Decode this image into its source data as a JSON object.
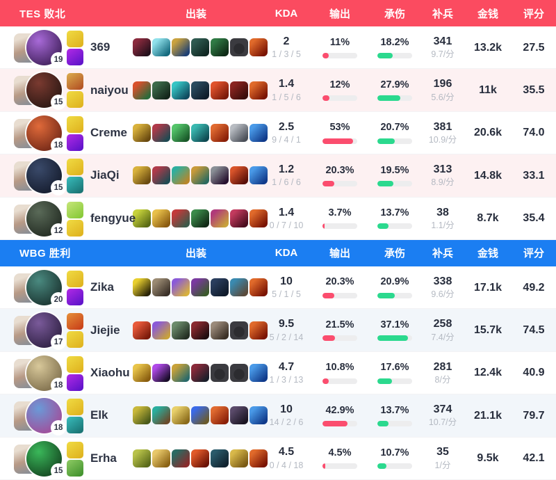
{
  "columns": {
    "items": "出装",
    "kda": "KDA",
    "damage": "输出",
    "taken": "承伤",
    "cs": "补兵",
    "gold": "金钱",
    "score": "评分"
  },
  "colors": {
    "red_bar": "#fb4d6e",
    "green_bar": "#2bd98e",
    "track": "#ededee"
  },
  "teams": [
    {
      "name": "TES 败北",
      "accent": "#fb4b60",
      "row_tint": "#fdf1f2",
      "players": [
        {
          "name": "369",
          "level": "19",
          "kda": "2",
          "kda_detail": "1 / 3 / 5",
          "damage": "11%",
          "damage_pct": 11,
          "taken": "18.2%",
          "taken_pct": 18.2,
          "cs": "341",
          "cs_per_min": "9.7/分",
          "gold": "13.2k",
          "score": "27.5",
          "avatar": [
            "#a86ad8",
            "#2a1040"
          ],
          "spells": [
            "#e8c832",
            "#8a1fd8"
          ],
          "items": [
            {
              "c": [
                "#8a2a3d",
                "#23101c"
              ]
            },
            {
              "c": [
                "#8fe0ea",
                "#156a7e"
              ]
            },
            {
              "c": [
                "#c9a23f",
                "#1d3f73"
              ]
            },
            {
              "c": [
                "#2f5a50",
                "#102722"
              ]
            },
            {
              "c": [
                "#2f7a44",
                "#0e2a16"
              ]
            },
            {
              "empty": true
            },
            {
              "c": [
                "#e06a2b",
                "#7a1403"
              ]
            }
          ]
        },
        {
          "name": "naiyou",
          "level": "15",
          "kda": "1.4",
          "kda_detail": "1 / 5 / 6",
          "damage": "12%",
          "damage_pct": 12,
          "taken": "27.9%",
          "taken_pct": 27.9,
          "cs": "196",
          "cs_per_min": "5.6/分",
          "gold": "11k",
          "score": "35.5",
          "avatar": [
            "#7a3a30",
            "#1a100d"
          ],
          "spells": [
            "#c8823a",
            "#e8c832"
          ],
          "items": [
            {
              "c": [
                "#d8502c",
                "#2a6a3a"
              ]
            },
            {
              "c": [
                "#3c6a4a",
                "#14251a"
              ]
            },
            {
              "c": [
                "#35c4c4",
                "#0f4a5e"
              ]
            },
            {
              "c": [
                "#2a4a5e",
                "#101c2a"
              ]
            },
            {
              "c": [
                "#e0522c",
                "#7a1a0a"
              ]
            },
            {
              "c": [
                "#8a2420",
                "#3a0d0a"
              ]
            },
            {
              "c": [
                "#e06a2b",
                "#7a1403"
              ]
            }
          ]
        },
        {
          "name": "Creme",
          "level": "18",
          "kda": "2.5",
          "kda_detail": "9 / 4 / 1",
          "damage": "53%",
          "damage_pct": 53,
          "taken": "20.7%",
          "taken_pct": 20.7,
          "cs": "381",
          "cs_per_min": "10.9/分",
          "gold": "20.6k",
          "score": "74.0",
          "avatar": [
            "#e06a3a",
            "#5a1a10"
          ],
          "spells": [
            "#e8c832",
            "#8a1fd8"
          ],
          "items": [
            {
              "c": [
                "#d8b13c",
                "#6a4a10"
              ]
            },
            {
              "c": [
                "#b03a4a",
                "#1f4a52"
              ]
            },
            {
              "c": [
                "#54c46a",
                "#1a5a2a"
              ]
            },
            {
              "c": [
                "#39b8b0",
                "#0f4a52"
              ]
            },
            {
              "c": [
                "#e06a30",
                "#8a2008"
              ]
            },
            {
              "c": [
                "#b8bcc2",
                "#4a4f58"
              ]
            },
            {
              "c": [
                "#4a9ae8",
                "#103a8a"
              ]
            }
          ]
        },
        {
          "name": "JiaQi",
          "level": "15",
          "kda": "1.2",
          "kda_detail": "1 / 6 / 6",
          "damage": "20.3%",
          "damage_pct": 20.3,
          "taken": "19.5%",
          "taken_pct": 19.5,
          "cs": "313",
          "cs_per_min": "8.9/分",
          "gold": "14.8k",
          "score": "33.1",
          "avatar": [
            "#3a4a6a",
            "#0d1220"
          ],
          "spells": [
            "#e8c832",
            "#2a9a9a"
          ],
          "items": [
            {
              "c": [
                "#d8b13c",
                "#6a4a10"
              ]
            },
            {
              "c": [
                "#b03a4a",
                "#1f4a52"
              ]
            },
            {
              "c": [
                "#2fae9e",
                "#b8862a"
              ]
            },
            {
              "c": [
                "#c89a3a",
                "#2a6a5e"
              ]
            },
            {
              "c": [
                "#8a8f96",
                "#26102e"
              ]
            },
            {
              "c": [
                "#d8542a",
                "#5a0f08"
              ]
            },
            {
              "c": [
                "#4a9ae8",
                "#103a8a"
              ]
            }
          ]
        },
        {
          "name": "fengyue",
          "level": "12",
          "kda": "1.4",
          "kda_detail": "0 / 7 / 10",
          "damage": "3.7%",
          "damage_pct": 3.7,
          "taken": "13.7%",
          "taken_pct": 13.7,
          "cs": "38",
          "cs_per_min": "1.1/分",
          "gold": "8.7k",
          "score": "35.4",
          "avatar": [
            "#5a6a58",
            "#161d16"
          ],
          "spells": [
            "#a8d85a",
            "#e8c832"
          ],
          "items": [
            {
              "c": [
                "#c6d23c",
                "#5a6a14"
              ]
            },
            {
              "c": [
                "#e8c04a",
                "#8a5a10"
              ]
            },
            {
              "c": [
                "#c23a3a",
                "#3a5a4a"
              ]
            },
            {
              "c": [
                "#3a8a4a",
                "#122a16"
              ]
            },
            {
              "c": [
                "#b03a7a",
                "#c8a23a"
              ]
            },
            {
              "c": [
                "#c23a5e",
                "#4a0d1e"
              ]
            },
            {
              "c": [
                "#e06a2b",
                "#7a1403"
              ]
            }
          ]
        }
      ]
    },
    {
      "name": "WBG 胜利",
      "accent": "#1b7ef2",
      "row_tint": "#f2f6fa",
      "players": [
        {
          "name": "Zika",
          "level": "20",
          "kda": "10",
          "kda_detail": "5 / 1 / 5",
          "damage": "20.3%",
          "damage_pct": 20.3,
          "taken": "20.9%",
          "taken_pct": 20.9,
          "cs": "338",
          "cs_per_min": "9.6/分",
          "gold": "17.1k",
          "score": "49.2",
          "avatar": [
            "#4a8a80",
            "#10201e"
          ],
          "spells": [
            "#e8c832",
            "#8a1fd8"
          ],
          "items": [
            {
              "c": [
                "#e8cf2f",
                "#2a2408"
              ]
            },
            {
              "c": [
                "#9a8a72",
                "#3a3028"
              ]
            },
            {
              "c": [
                "#8a5ad8",
                "#d8b13c"
              ]
            },
            {
              "c": [
                "#7a3aa0",
                "#3a5a2a"
              ]
            },
            {
              "c": [
                "#2a3e5e",
                "#0f1a2a"
              ]
            },
            {
              "c": [
                "#3a8ab0",
                "#5a4a3a"
              ]
            },
            {
              "c": [
                "#e06a2b",
                "#7a1403"
              ]
            }
          ]
        },
        {
          "name": "Jiejie",
          "level": "17",
          "kda": "9.5",
          "kda_detail": "5 / 2 / 14",
          "damage": "21.5%",
          "damage_pct": 21.5,
          "taken": "37.1%",
          "taken_pct": 37.1,
          "cs": "258",
          "cs_per_min": "7.4/分",
          "gold": "15.7k",
          "score": "74.5",
          "avatar": [
            "#7a5a9a",
            "#1e1430"
          ],
          "spells": [
            "#d86a2a",
            "#e8c832"
          ],
          "items": [
            {
              "c": [
                "#e85a3a",
                "#7a1a0a"
              ]
            },
            {
              "c": [
                "#8a5ad8",
                "#c8a23a"
              ]
            },
            {
              "c": [
                "#6a8a6a",
                "#232e23"
              ]
            },
            {
              "c": [
                "#8a2a30",
                "#1f0d10"
              ]
            },
            {
              "c": [
                "#9a8a7a",
                "#3a3026"
              ]
            },
            {
              "empty": true
            },
            {
              "c": [
                "#e06a2b",
                "#7a1403"
              ]
            }
          ]
        },
        {
          "name": "Xiaohu",
          "level": "18",
          "kda": "4.7",
          "kda_detail": "1 / 3 / 13",
          "damage": "10.8%",
          "damage_pct": 10.8,
          "taken": "17.6%",
          "taken_pct": 17.6,
          "cs": "281",
          "cs_per_min": "8/分",
          "gold": "12.4k",
          "score": "40.9",
          "avatar": [
            "#d8c89a",
            "#6a5a3a"
          ],
          "spells": [
            "#e8c832",
            "#8a1fd8"
          ],
          "items": [
            {
              "c": [
                "#e8c44a",
                "#8a5e10"
              ]
            },
            {
              "c": [
                "#b04ae8",
                "#1a0d2a"
              ]
            },
            {
              "c": [
                "#c8a23a",
                "#2a6a6a"
              ]
            },
            {
              "c": [
                "#8a2a3a",
                "#1a1f2a"
              ]
            },
            {
              "empty": true
            },
            {
              "empty": true
            },
            {
              "c": [
                "#4a9ae8",
                "#103a8a"
              ]
            }
          ]
        },
        {
          "name": "Elk",
          "level": "18",
          "kda": "10",
          "kda_detail": "14 / 2 / 6",
          "damage": "42.9%",
          "damage_pct": 42.9,
          "taken": "13.7%",
          "taken_pct": 13.7,
          "cs": "374",
          "cs_per_min": "10.7/分",
          "gold": "21.1k",
          "score": "79.7",
          "avatar": [
            "#6a9ad8",
            "#b03a8a"
          ],
          "spells": [
            "#e8c832",
            "#2a9a9a"
          ],
          "items": [
            {
              "c": [
                "#c8b83a",
                "#4a5a1a"
              ]
            },
            {
              "c": [
                "#2aae9e",
                "#6a4a2a"
              ]
            },
            {
              "c": [
                "#e8d06a",
                "#8a6a1a"
              ]
            },
            {
              "c": [
                "#3a6ae8",
                "#6a5a2a"
              ]
            },
            {
              "c": [
                "#e06a30",
                "#8a2008"
              ]
            },
            {
              "c": [
                "#5a4a6a",
                "#1a1522"
              ]
            },
            {
              "c": [
                "#4a9ae8",
                "#103a8a"
              ]
            }
          ]
        },
        {
          "name": "Erha",
          "level": "15",
          "kda": "4.5",
          "kda_detail": "0 / 4 / 18",
          "damage": "4.5%",
          "damage_pct": 4.5,
          "taken": "10.7%",
          "taken_pct": 10.7,
          "cs": "35",
          "cs_per_min": "1/分",
          "gold": "9.5k",
          "score": "42.1",
          "avatar": [
            "#3ab85a",
            "#0c2e14"
          ],
          "spells": [
            "#e8c832",
            "#6ab04a"
          ],
          "items": [
            {
              "c": [
                "#b8c24a",
                "#5a6a1a"
              ]
            },
            {
              "c": [
                "#e8c86a",
                "#8a6214"
              ]
            },
            {
              "c": [
                "#2a6a62",
                "#8a2a2a"
              ]
            },
            {
              "c": [
                "#e05a2a",
                "#6a1205"
              ]
            },
            {
              "c": [
                "#2a5a6a",
                "#10222e"
              ]
            },
            {
              "c": [
                "#d8b84a",
                "#7a5a14"
              ]
            },
            {
              "c": [
                "#e06a2b",
                "#7a1403"
              ]
            }
          ]
        }
      ]
    }
  ]
}
